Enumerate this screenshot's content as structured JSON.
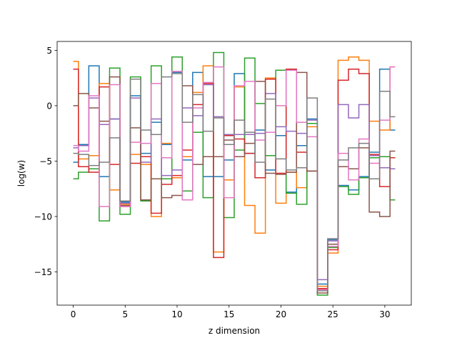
{
  "chart_data": {
    "type": "line",
    "drawstyle": "steps-mid",
    "xlabel": "z dimension",
    "ylabel": "log(w)",
    "xlim": [
      -1.55,
      32.55
    ],
    "ylim": [
      -18.0,
      5.8
    ],
    "xticks": [
      0,
      5,
      10,
      15,
      20,
      25,
      30
    ],
    "yticks": [
      5,
      0,
      -5,
      -10,
      -15
    ],
    "ytick_labels": [
      "5",
      "0",
      "−5",
      "−10",
      "−15"
    ],
    "grid": false,
    "legend": "none",
    "x": [
      0,
      1,
      2,
      3,
      4,
      5,
      6,
      7,
      8,
      9,
      10,
      11,
      12,
      13,
      14,
      15,
      16,
      17,
      18,
      19,
      20,
      21,
      22,
      23,
      24,
      25,
      26,
      27,
      28,
      29,
      30,
      31
    ],
    "series": [
      {
        "color": "#1f77b4",
        "values": [
          -5.1,
          -3.5,
          3.6,
          -6.4,
          -1.2,
          -8.7,
          0.9,
          -4.3,
          -1.5,
          -3.5,
          3.0,
          -4.9,
          3.0,
          -6.4,
          -6.4,
          -4.9,
          2.9,
          -4.3,
          -2.2,
          -5.8,
          -2.7,
          -7.8,
          -3.6,
          -1.2,
          -16.1,
          -12.1,
          -7.2,
          -7.6,
          -6.4,
          -4.2,
          3.3,
          -2.2
        ]
      },
      {
        "color": "#ff7f0e",
        "values": [
          4.0,
          -4.8,
          -4.5,
          2.0,
          -7.6,
          -8.9,
          -4.4,
          -5.3,
          -10.0,
          -3.4,
          -6.5,
          -4.6,
          1.2,
          3.6,
          -13.2,
          -6.7,
          1.7,
          -9.0,
          -11.5,
          2.5,
          -8.8,
          -6.0,
          -7.4,
          -1.9,
          -16.3,
          -13.3,
          4.1,
          4.4,
          4.1,
          -1.4,
          -2.2,
          3.5
        ]
      },
      {
        "color": "#2ca02c",
        "values": [
          -6.6,
          -6.0,
          -5.7,
          -10.4,
          3.4,
          -9.8,
          2.6,
          -8.6,
          3.6,
          -6.6,
          4.4,
          -7.7,
          -2.4,
          -8.3,
          4.8,
          -10.1,
          -4.0,
          4.3,
          0.2,
          -4.5,
          3.2,
          -7.9,
          -8.9,
          -1.6,
          -17.1,
          -12.8,
          -7.3,
          -8.0,
          -6.5,
          -4.7,
          -4.6,
          -8.5
        ]
      },
      {
        "color": "#d62728",
        "values": [
          3.3,
          -5.5,
          -6.0,
          1.7,
          -5.3,
          -9.1,
          -5.2,
          -4.6,
          -9.7,
          -7.1,
          -6.3,
          -4.0,
          0.1,
          2.0,
          -13.7,
          -2.7,
          -3.0,
          -4.3,
          -6.5,
          2.4,
          -6.1,
          3.3,
          -4.2,
          -5.9,
          -16.5,
          -13.0,
          2.3,
          3.3,
          2.9,
          -4.4,
          -7.3,
          -4.7
        ]
      },
      {
        "color": "#9467bd",
        "values": [
          -3.8,
          -3.6,
          0.7,
          -1.7,
          -1.2,
          -8.8,
          0.7,
          -5.1,
          -1.2,
          -6.3,
          -5.8,
          -0.2,
          -0.9,
          1.9,
          -1.0,
          -2.6,
          -2.6,
          -2.6,
          -2.5,
          1.1,
          -1.9,
          -2.3,
          -2.5,
          -1.3,
          -15.7,
          -12.2,
          0.1,
          -1.1,
          0.1,
          -4.5,
          -5.6,
          -5.7
        ]
      },
      {
        "color": "#8c564b",
        "values": [
          0.0,
          1.1,
          -0.2,
          -1.4,
          2.6,
          -9.0,
          -2.0,
          -8.5,
          -6.6,
          -8.3,
          -8.1,
          1.8,
          -5.3,
          -4.6,
          -4.6,
          -3.1,
          -4.6,
          -3.4,
          2.2,
          -6.1,
          -6.2,
          -6.0,
          3.0,
          -5.9,
          -16.9,
          -12.5,
          -5.5,
          -5.7,
          -3.8,
          -9.6,
          -10.0,
          -4.1
        ]
      },
      {
        "color": "#e377c2",
        "values": [
          -3.6,
          -4.1,
          0.9,
          -9.1,
          1.9,
          -9.1,
          -3.3,
          -3.4,
          2.0,
          -4.7,
          3.1,
          -8.5,
          -0.2,
          2.1,
          3.5,
          -8.3,
          1.8,
          2.2,
          -3.1,
          -2.4,
          0.0,
          3.2,
          -1.5,
          -2.8,
          -16.6,
          -12.7,
          -4.3,
          -6.7,
          -3.0,
          -5.2,
          -1.3,
          3.5
        ]
      },
      {
        "color": "#7f7f7f",
        "values": [
          -4.3,
          -4.4,
          -5.4,
          -5.1,
          -2.9,
          -8.6,
          2.4,
          -2.2,
          -2.6,
          2.6,
          2.9,
          -1.5,
          1.0,
          -2.3,
          -1.1,
          -3.5,
          -1.3,
          -2.4,
          -5.1,
          0.6,
          -4.8,
          -5.8,
          -5.6,
          0.7,
          -16.7,
          -12.0,
          -4.9,
          -3.8,
          -3.4,
          -6.6,
          1.3,
          -1.0
        ]
      }
    ]
  }
}
